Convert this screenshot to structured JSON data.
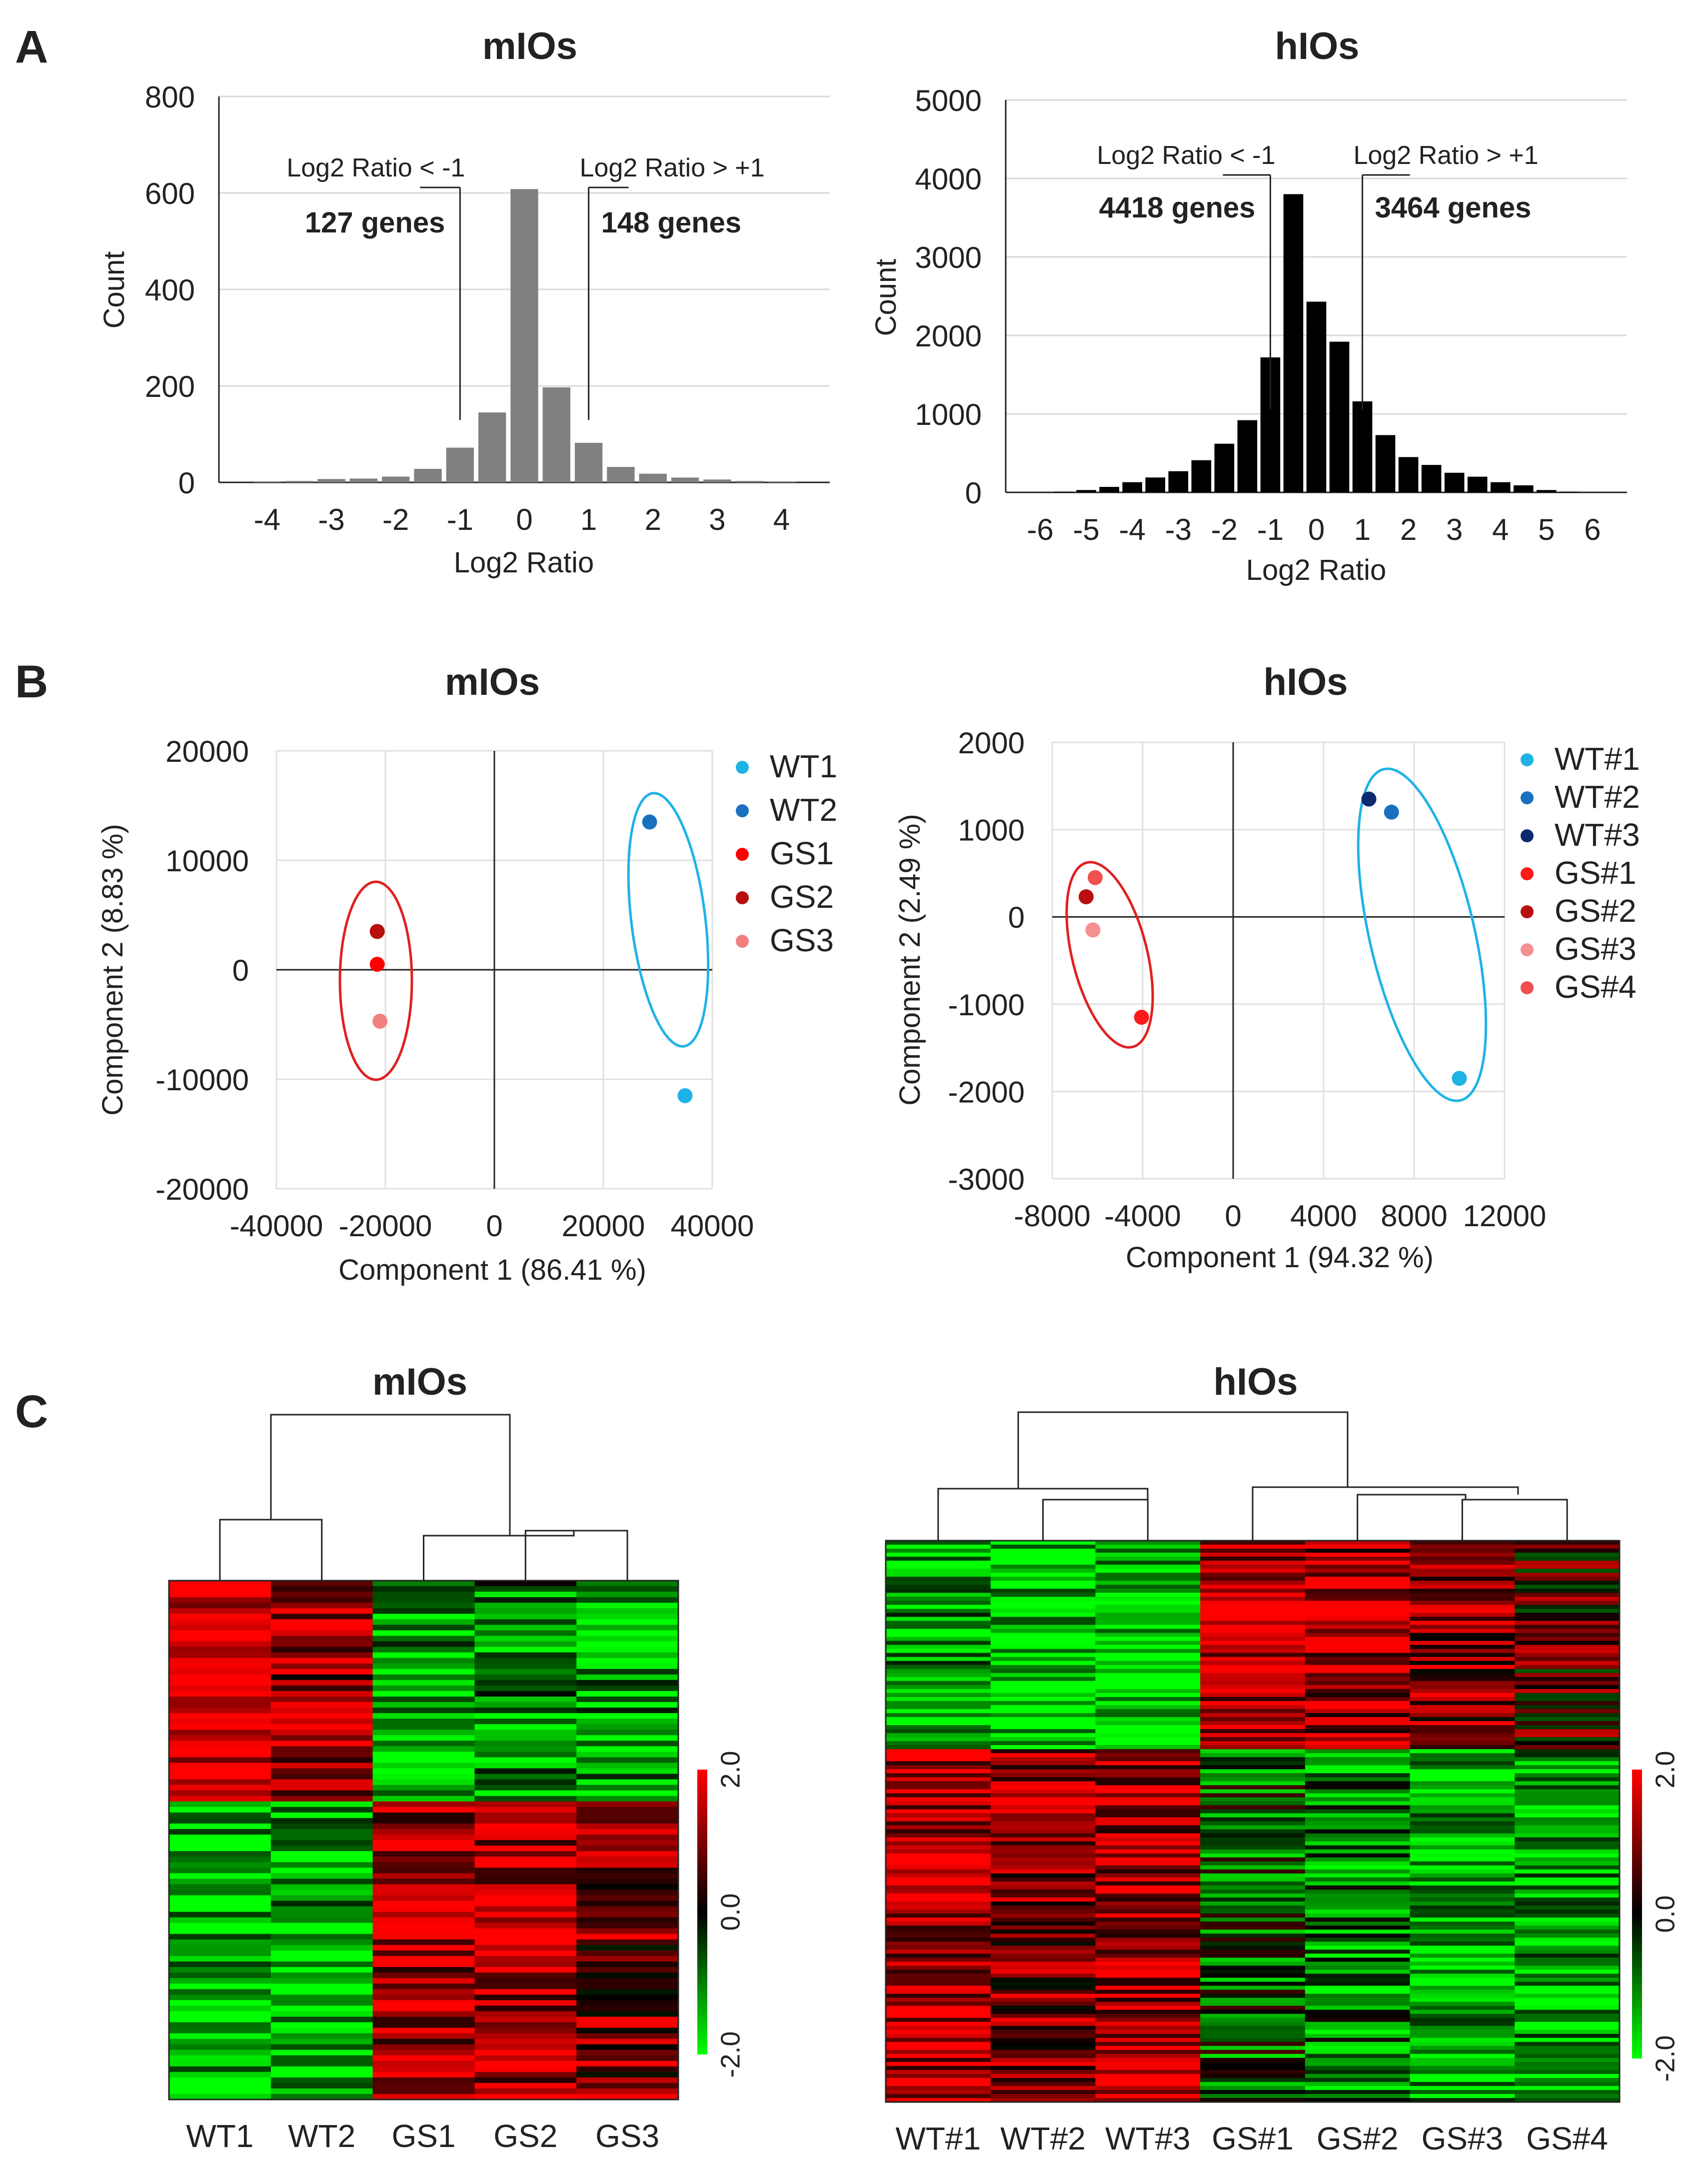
{
  "panel_labels": {
    "a": "A",
    "b": "B",
    "c": "C"
  },
  "colors": {
    "green_text": "#2db34a",
    "red_text": "#c4161c",
    "mouse_bar": "#808080",
    "human_bar": "#000000",
    "wt_ellipse": "#1fb2e6",
    "gs_ellipse": "#e02020",
    "heat_red": "#ff0000",
    "heat_green": "#00ff00"
  },
  "chart_data": [
    {
      "id": "hist_m",
      "type": "bar",
      "title": "mIOs",
      "xlabel": "Log2 Ratio",
      "ylabel": "Count",
      "xlim": [
        -4.75,
        4.75
      ],
      "ylim": [
        0,
        800
      ],
      "yticks": [
        0,
        200,
        400,
        600,
        800
      ],
      "xticks": [
        -4,
        -3,
        -2,
        -1,
        0,
        1,
        2,
        3,
        4
      ],
      "bin_centers": [
        -4,
        -3.5,
        -3,
        -2.5,
        -2,
        -1.5,
        -1,
        -0.5,
        0,
        0.5,
        1,
        1.5,
        2,
        2.5,
        3,
        3.5,
        4
      ],
      "values": [
        1,
        3,
        7,
        8,
        12,
        28,
        72,
        145,
        608,
        197,
        82,
        32,
        18,
        10,
        6,
        3,
        1
      ],
      "annotations": {
        "left_label": "Log2 Ratio < -1",
        "right_label": "Log2 Ratio > +1",
        "left_count": "127 genes",
        "right_count": "148 genes"
      }
    },
    {
      "id": "hist_h",
      "type": "bar",
      "title": "hIOs",
      "xlabel": "Log2 Ratio",
      "ylabel": "Count",
      "xlim": [
        -6.75,
        6.75
      ],
      "ylim": [
        0,
        5000
      ],
      "yticks": [
        0,
        1000,
        2000,
        3000,
        4000,
        5000
      ],
      "xticks": [
        -6,
        -5,
        -4,
        -3,
        -2,
        -1,
        0,
        1,
        2,
        3,
        4,
        5,
        6
      ],
      "bin_centers": [
        -5.5,
        -5,
        -4.5,
        -4,
        -3.5,
        -3,
        -2.5,
        -2,
        -1.5,
        -1,
        -0.5,
        0,
        0.5,
        1,
        1.5,
        2,
        2.5,
        3,
        3.5,
        4,
        4.5,
        5,
        5.5
      ],
      "values": [
        10,
        30,
        70,
        130,
        190,
        270,
        410,
        620,
        920,
        1720,
        3800,
        2430,
        1920,
        1160,
        730,
        450,
        350,
        250,
        200,
        130,
        90,
        30,
        10
      ],
      "annotations": {
        "left_label": "Log2 Ratio < -1",
        "right_label": "Log2 Ratio > +1",
        "left_count": "4418 genes",
        "right_count": "3464 genes"
      }
    },
    {
      "id": "pca_m",
      "type": "scatter",
      "title": "mIOs",
      "xlabel": "Component 1 (86.41 %)",
      "ylabel": "Component 2 (8.83 %)",
      "xlim": [
        -40000,
        40000
      ],
      "ylim": [
        -20000,
        20000
      ],
      "xticks": [
        -40000,
        -20000,
        0,
        20000,
        40000
      ],
      "yticks": [
        20000,
        10000,
        0,
        -10000,
        -20000
      ],
      "points": [
        {
          "name": "WT1",
          "x": 35000,
          "y": -11500,
          "color": "#1fb2e6"
        },
        {
          "name": "WT2",
          "x": 28500,
          "y": 13500,
          "color": "#1a70c0"
        },
        {
          "name": "GS1",
          "x": -21500,
          "y": 500,
          "color": "#ff0000"
        },
        {
          "name": "GS2",
          "x": -21500,
          "y": 3500,
          "color": "#b80f0f"
        },
        {
          "name": "GS3",
          "x": -21000,
          "y": -4700,
          "color": "#f08080"
        }
      ]
    },
    {
      "id": "pca_h",
      "type": "scatter",
      "title": "hIOs",
      "xlabel": "Component 1 (94.32 %)",
      "ylabel": "Component 2 (2.49 %)",
      "xlim": [
        -8000,
        12000
      ],
      "ylim": [
        -3000,
        2000
      ],
      "xticks": [
        -8000,
        -4000,
        0,
        4000,
        8000,
        12000
      ],
      "yticks": [
        2000,
        1000,
        0,
        -1000,
        -2000,
        -3000
      ],
      "points": [
        {
          "name": "WT#1",
          "x": 10000,
          "y": -1850,
          "color": "#1fb2e6"
        },
        {
          "name": "WT#2",
          "x": 7000,
          "y": 1200,
          "color": "#1a70c0"
        },
        {
          "name": "WT#3",
          "x": 6000,
          "y": 1350,
          "color": "#0b2a6e"
        },
        {
          "name": "GS#1",
          "x": -4050,
          "y": -1150,
          "color": "#ff1a1a"
        },
        {
          "name": "GS#2",
          "x": -6500,
          "y": 230,
          "color": "#b80f0f"
        },
        {
          "name": "GS#3",
          "x": -6200,
          "y": -150,
          "color": "#f59090"
        },
        {
          "name": "GS#4",
          "x": -6100,
          "y": 450,
          "color": "#f05050"
        }
      ]
    },
    {
      "id": "heat_m",
      "type": "heatmap",
      "title": "mIOs",
      "columns": [
        "WT1",
        "WT2",
        "GS1",
        "GS2",
        "GS3"
      ],
      "scale": {
        "max": "2.0",
        "mid": "0.0",
        "min": "-2.0"
      },
      "cluster_means": [
        {
          "rows": 40,
          "values": [
            1.8,
            1.2,
            -1.3,
            -1.1,
            -1.4
          ]
        },
        {
          "rows": 54,
          "values": [
            -1.6,
            -1.5,
            1.4,
            1.5,
            0.9
          ]
        }
      ]
    },
    {
      "id": "heat_h",
      "type": "heatmap",
      "title": "hIOs",
      "columns": [
        "WT#1",
        "WT#2",
        "WT#3",
        "GS#1",
        "GS#2",
        "GS#3",
        "GS#4"
      ],
      "scale": {
        "max": "2.0",
        "mid": "0.0",
        "min": "-2.0"
      },
      "cluster_means": [
        {
          "rows": 52,
          "values": [
            -1.3,
            -1.7,
            -1.7,
            1.5,
            1.3,
            1.1,
            0.5
          ]
        },
        {
          "rows": 88,
          "values": [
            1.5,
            1.0,
            1.4,
            -0.6,
            -1.0,
            -1.5,
            -1.4
          ]
        }
      ]
    }
  ]
}
